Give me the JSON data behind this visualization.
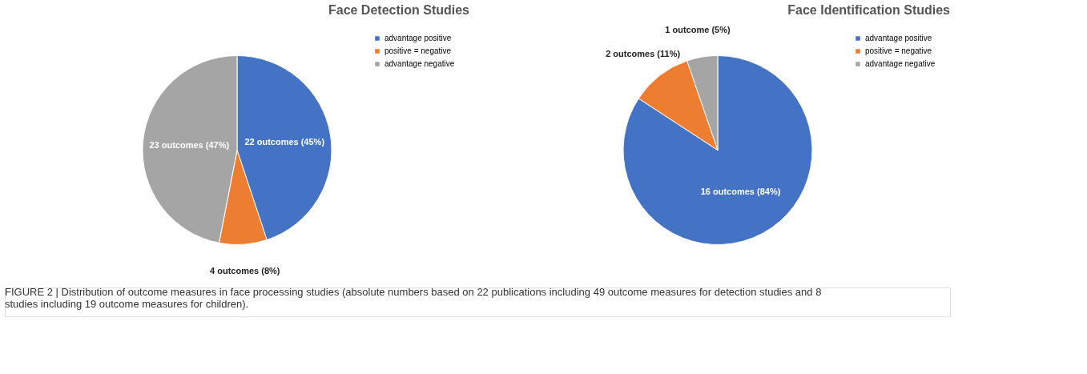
{
  "chart_data": [
    {
      "type": "pie",
      "title": "Face Detection Studies",
      "categories": [
        "advantage positive",
        "positive = negative",
        "advantage negative"
      ],
      "values": [
        22,
        4,
        23
      ],
      "colors": [
        "#4472c4",
        "#ed7d31",
        "#a5a5a5"
      ],
      "value_labels": [
        "22 outcomes (45%)",
        "4 outcomes (8%)",
        "23 outcomes (47%)"
      ],
      "legend": "top right",
      "annotations": [
        "FIGURE 2 | Distribution of outcome measures in face processing studies (absolute numbers based on 22 publications including 49 outcome measures for detection studies and 8 studies including 19 outcome measures for children)."
      ]
    },
    {
      "type": "pie",
      "title": "Face Identification Studies",
      "categories": [
        "advantage positive",
        "positive = negative",
        "advantage negative"
      ],
      "values": [
        16,
        2,
        1
      ],
      "colors": [
        "#4472c4",
        "#ed7d31",
        "#a5a5a5"
      ],
      "value_labels": [
        "16 outcomes (84%)",
        "2 outcomes (11%)",
        "1 outcome (5%)"
      ],
      "legend": "top right"
    }
  ]
}
